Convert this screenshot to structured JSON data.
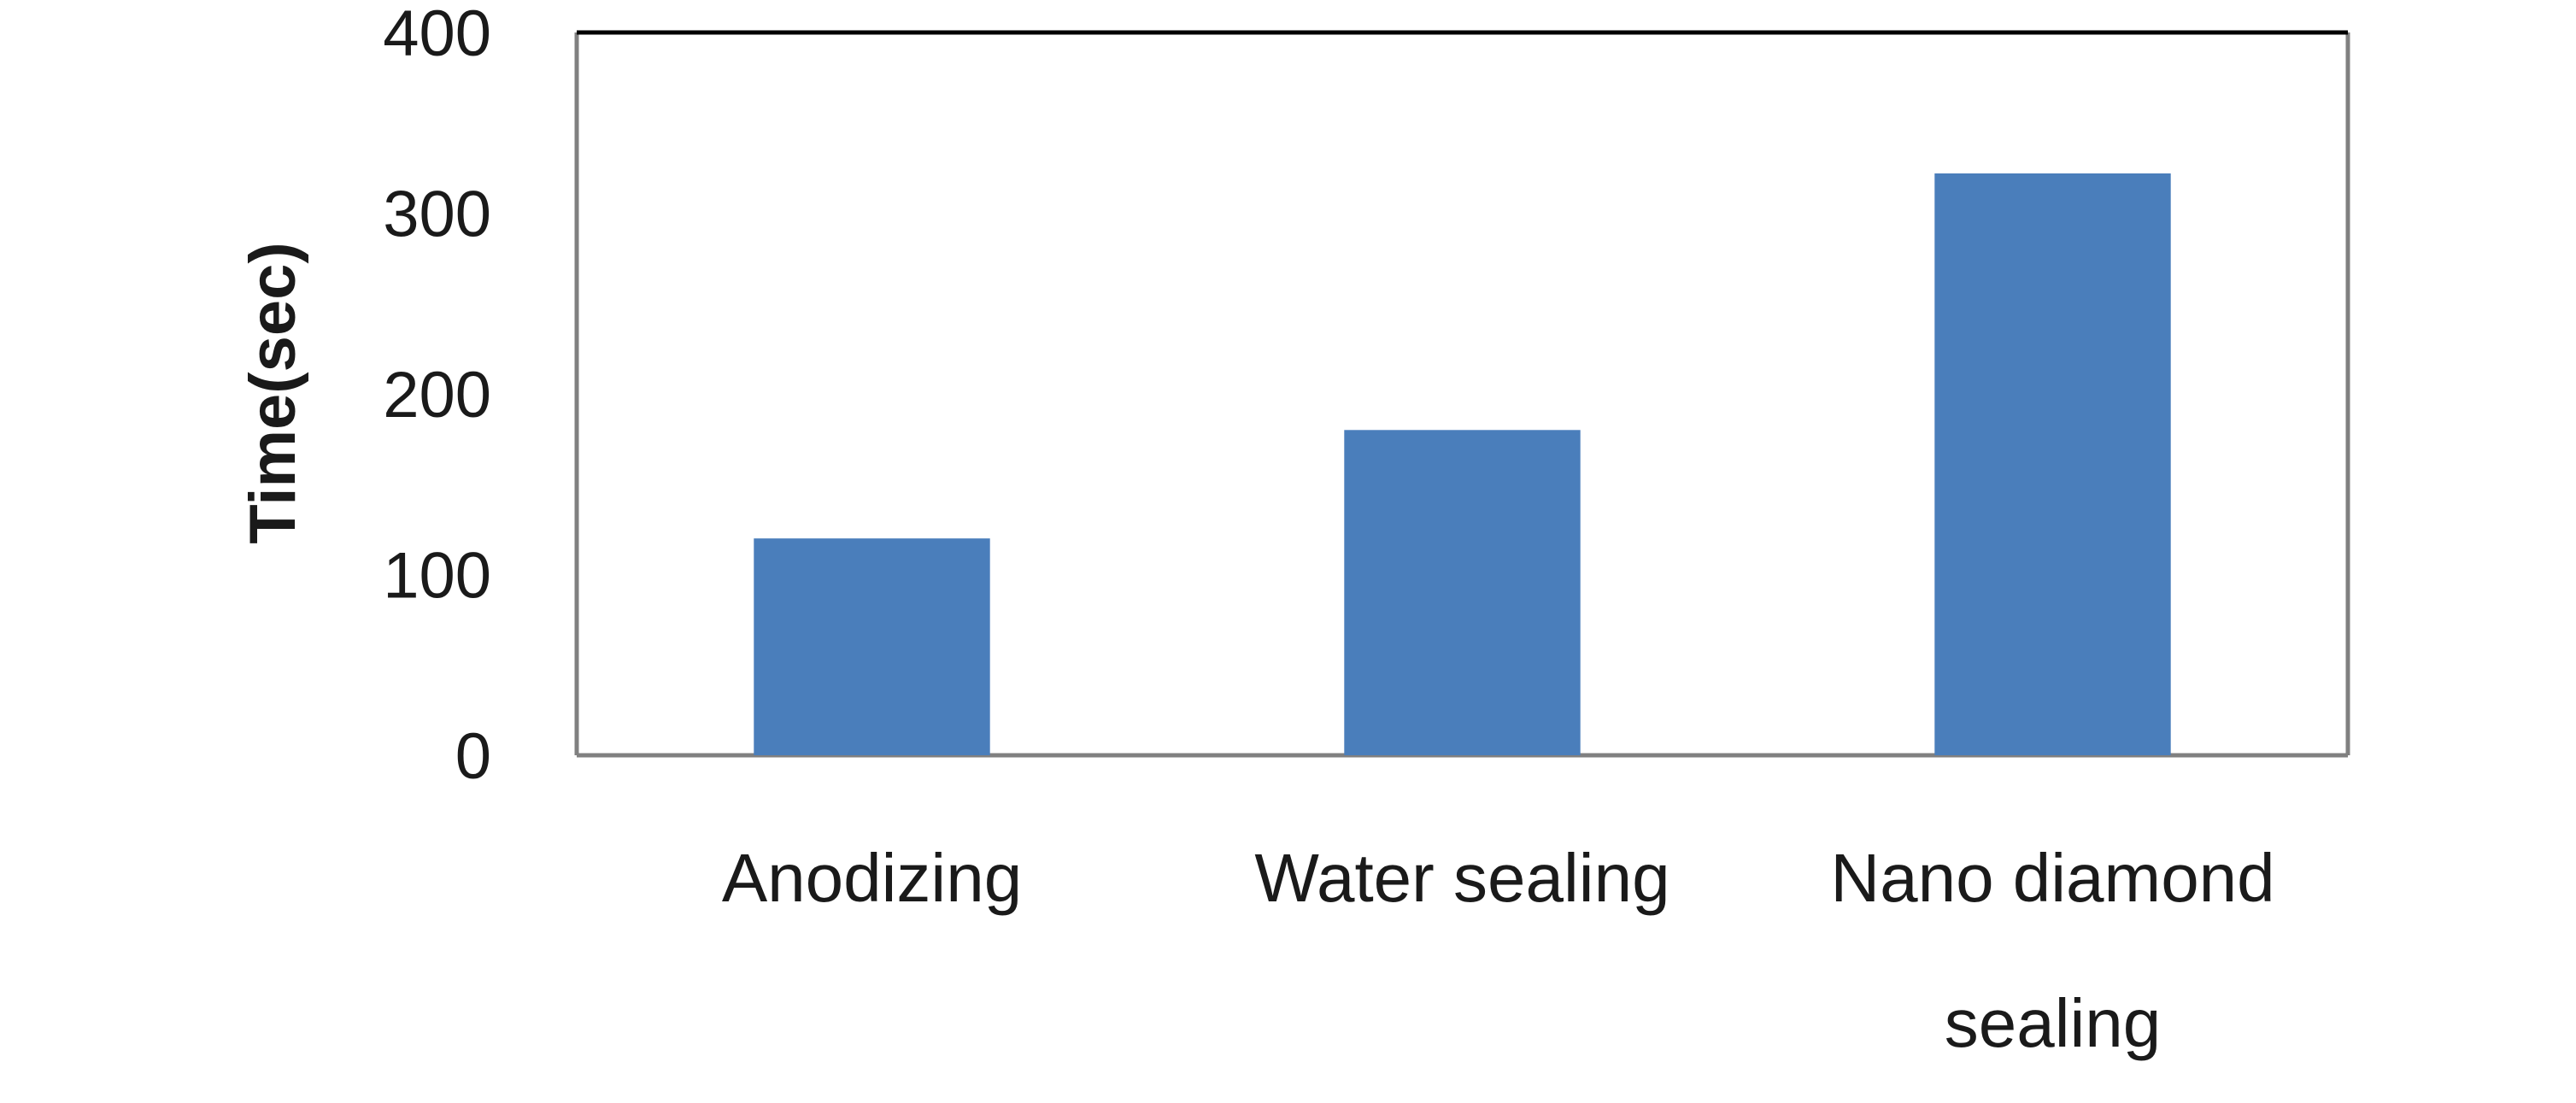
{
  "chart_data": {
    "type": "bar",
    "categories": [
      [
        "Anodizing"
      ],
      [
        "Water sealing"
      ],
      [
        "Nano diamond",
        "sealing"
      ]
    ],
    "values": [
      120,
      180,
      322
    ],
    "ylabel": "Time(sec)",
    "xlabel": "",
    "title": "",
    "ylim": [
      0,
      400
    ],
    "yticks": [
      0,
      100,
      200,
      300,
      400
    ],
    "grid": false,
    "bar_color": "#4a7ebb",
    "axis_color": "#808080",
    "top_border_color": "#000000"
  }
}
